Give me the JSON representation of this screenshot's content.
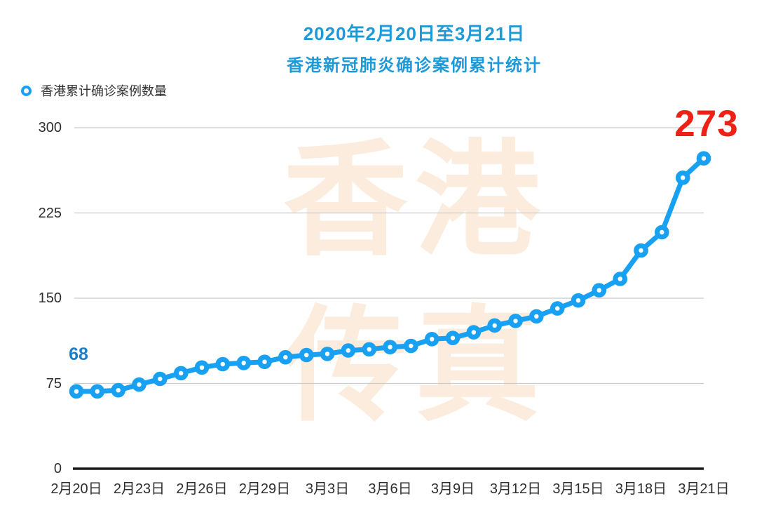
{
  "title": {
    "line1": "2020年2月20日至3月21日",
    "line2": "香港新冠肺炎确诊案例累计统计"
  },
  "legend": {
    "label": "香港累计确诊案例数量"
  },
  "watermark": {
    "line1": "香港",
    "line2": "传真"
  },
  "colors": {
    "title_blue": "#1e9ad8",
    "line_blue": "#18a1f3",
    "marker_center_white": "#ffffff",
    "first_label_blue": "#1c7ec8",
    "last_label_red": "#ee2116",
    "watermark_peach": "#fcecdd",
    "gridline_gray": "#cbcbcb",
    "axis_black": "#1a1a1a",
    "tick_text": "#2e2e2e",
    "legend_text": "#333333"
  },
  "chart_data": {
    "type": "line",
    "title": "2020年2月20日至3月21日 香港新冠肺炎确诊案例累计统计",
    "series_name": "香港累计确诊案例数量",
    "xlabel": "",
    "ylabel": "",
    "ylim": [
      0,
      300
    ],
    "yticks": [
      0,
      75,
      150,
      225,
      300
    ],
    "grid": true,
    "legend_position": "top-left",
    "x": [
      "2月20日",
      "2月21日",
      "2月22日",
      "2月23日",
      "2月24日",
      "2月25日",
      "2月26日",
      "2月27日",
      "2月28日",
      "2月29日",
      "3月1日",
      "3月2日",
      "3月3日",
      "3月4日",
      "3月5日",
      "3月6日",
      "3月7日",
      "3月8日",
      "3月9日",
      "3月10日",
      "3月11日",
      "3月12日",
      "3月13日",
      "3月14日",
      "3月15日",
      "3月16日",
      "3月17日",
      "3月18日",
      "3月19日",
      "3月20日",
      "3月21日"
    ],
    "values": [
      68,
      68,
      69,
      74,
      79,
      84,
      89,
      92,
      93,
      94,
      98,
      100,
      101,
      104,
      105,
      107,
      108,
      114,
      115,
      120,
      126,
      130,
      134,
      141,
      148,
      157,
      167,
      192,
      208,
      256,
      273
    ],
    "xtick_labels": [
      "2月20日",
      "2月23日",
      "2月26日",
      "2月29日",
      "3月3日",
      "3月6日",
      "3月9日",
      "3月12日",
      "3月15日",
      "3月18日",
      "3月21日"
    ],
    "xtick_step": 3,
    "point_labels": {
      "first": "68",
      "last": "273"
    }
  }
}
